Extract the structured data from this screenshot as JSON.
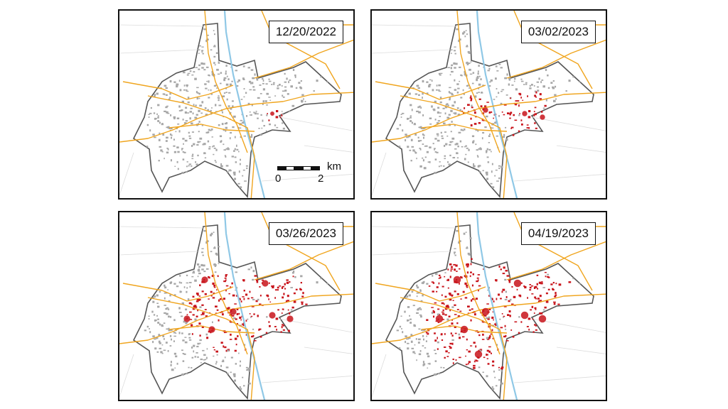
{
  "panels": [
    {
      "date": "12/20/2022",
      "damage_level": 0.15,
      "show_scale": true
    },
    {
      "date": "03/02/2023",
      "damage_level": 0.4,
      "show_scale": false
    },
    {
      "date": "03/26/2023",
      "damage_level": 0.7,
      "show_scale": false
    },
    {
      "date": "04/19/2023",
      "damage_level": 0.92,
      "show_scale": false
    }
  ],
  "scale": {
    "unit": "km",
    "min_label": "0",
    "max_label": "2"
  },
  "colors": {
    "boundary": "#555555",
    "river": "#8fc8e6",
    "roads": "#f0a51e",
    "buildings_undamaged": "#a7a7a7",
    "buildings_damaged": "#c8141b",
    "panel_border": "#111111"
  }
}
